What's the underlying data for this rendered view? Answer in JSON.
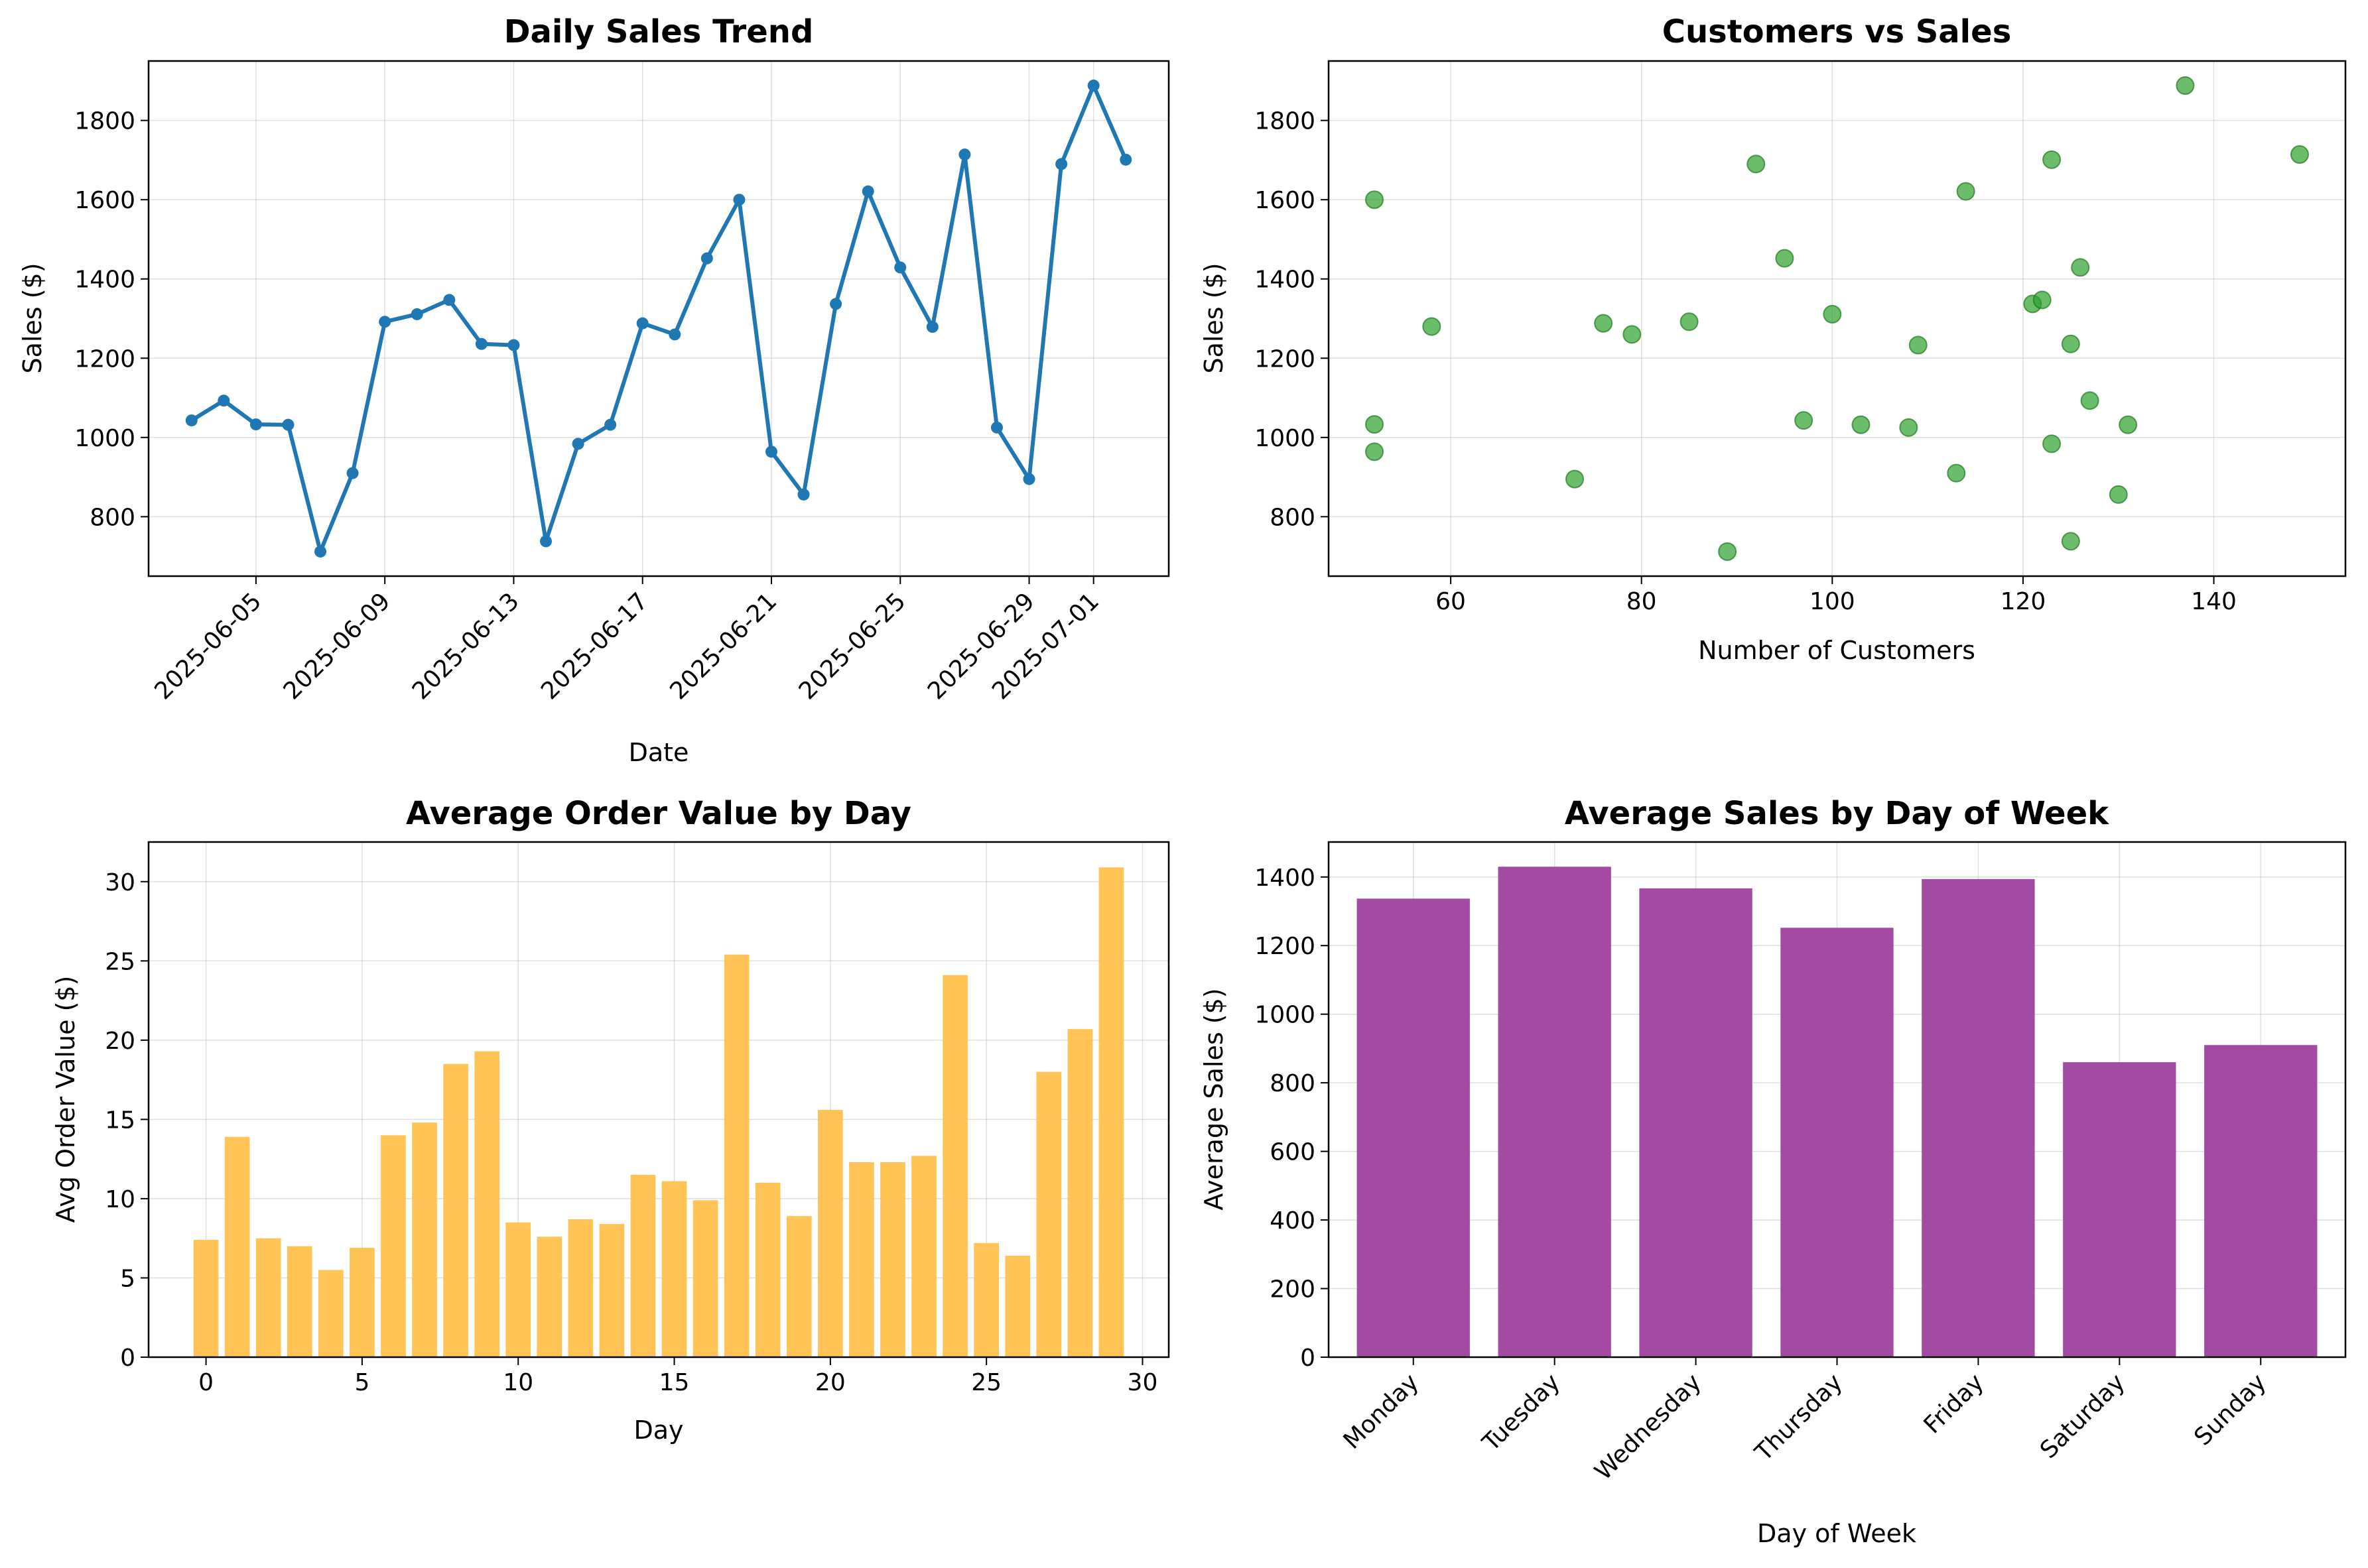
{
  "chart_data": [
    {
      "type": "line",
      "title": "Daily Sales Trend",
      "xlabel": "Date",
      "ylabel": "Sales ($)",
      "x": [
        "2025-06-03",
        "2025-06-04",
        "2025-06-05",
        "2025-06-06",
        "2025-06-07",
        "2025-06-08",
        "2025-06-09",
        "2025-06-10",
        "2025-06-11",
        "2025-06-12",
        "2025-06-13",
        "2025-06-14",
        "2025-06-15",
        "2025-06-16",
        "2025-06-17",
        "2025-06-18",
        "2025-06-19",
        "2025-06-20",
        "2025-06-21",
        "2025-06-22",
        "2025-06-23",
        "2025-06-24",
        "2025-06-25",
        "2025-06-26",
        "2025-06-27",
        "2025-06-28",
        "2025-06-29",
        "2025-06-30",
        "2025-07-01",
        "2025-07-02"
      ],
      "values": [
        1043,
        1093,
        1033,
        1032,
        712,
        910,
        1292,
        1311,
        1347,
        1236,
        1233,
        738,
        984,
        1032,
        1288,
        1260,
        1452,
        1600,
        964,
        856,
        1337,
        1621,
        1429,
        1279,
        1714,
        1025,
        895,
        1690,
        1888,
        1701
      ],
      "xticks": [
        "2025-06-05",
        "2025-06-09",
        "2025-06-13",
        "2025-06-17",
        "2025-06-21",
        "2025-06-25",
        "2025-06-29",
        "2025-07-01"
      ],
      "yticks": [
        800,
        1000,
        1200,
        1400,
        1600,
        1800
      ],
      "ylim": [
        650,
        1950
      ],
      "xlim": [
        "2025-06-01T16:00",
        "2025-07-03T08:00"
      ],
      "grid": true,
      "color": "#1f77b4"
    },
    {
      "type": "scatter",
      "title": "Customers vs Sales",
      "xlabel": "Number of Customers",
      "ylabel": "Sales ($)",
      "points": [
        [
          52,
          1600
        ],
        [
          52,
          1033
        ],
        [
          52,
          964
        ],
        [
          58,
          1280
        ],
        [
          73,
          895
        ],
        [
          76,
          1288
        ],
        [
          79,
          1260
        ],
        [
          85,
          1292
        ],
        [
          89,
          712
        ],
        [
          92,
          1690
        ],
        [
          95,
          1452
        ],
        [
          97,
          1043
        ],
        [
          100,
          1311
        ],
        [
          103,
          1032
        ],
        [
          108,
          1025
        ],
        [
          109,
          1233
        ],
        [
          113,
          910
        ],
        [
          114,
          1621
        ],
        [
          121,
          1337
        ],
        [
          122,
          1347
        ],
        [
          123,
          1701
        ],
        [
          123,
          984
        ],
        [
          125,
          1236
        ],
        [
          125,
          738
        ],
        [
          126,
          1429
        ],
        [
          127,
          1093
        ],
        [
          130,
          856
        ],
        [
          131,
          1032
        ],
        [
          137,
          1888
        ],
        [
          149,
          1714
        ]
      ],
      "xticks": [
        60,
        80,
        100,
        120,
        140
      ],
      "yticks": [
        800,
        1000,
        1200,
        1400,
        1600,
        1800
      ],
      "xlim": [
        47.2,
        153.8
      ],
      "ylim": [
        650,
        1950
      ],
      "grid": true,
      "color": "#2ca02c"
    },
    {
      "type": "bar",
      "title": "Average Order Value by Day",
      "xlabel": "Day",
      "ylabel": "Avg Order Value ($)",
      "x": [
        0,
        1,
        2,
        3,
        4,
        5,
        6,
        7,
        8,
        9,
        10,
        11,
        12,
        13,
        14,
        15,
        16,
        17,
        18,
        19,
        20,
        21,
        22,
        23,
        24,
        25,
        26,
        27,
        28,
        29
      ],
      "values": [
        7.4,
        13.9,
        7.5,
        7.0,
        5.5,
        6.9,
        14.0,
        14.8,
        18.5,
        19.3,
        8.5,
        7.6,
        8.7,
        8.4,
        11.5,
        11.1,
        9.9,
        25.4,
        11.0,
        8.9,
        15.6,
        12.3,
        12.3,
        12.7,
        24.1,
        7.2,
        6.4,
        18.0,
        20.7,
        30.9
      ],
      "xticks": [
        0,
        5,
        10,
        15,
        20,
        25,
        30
      ],
      "yticks": [
        0,
        5,
        10,
        15,
        20,
        25,
        30
      ],
      "xlim": [
        -1.84,
        30.84
      ],
      "ylim": [
        0,
        32.5
      ],
      "grid": true,
      "color": "#ffc04d"
    },
    {
      "type": "bar",
      "title": "Average Sales by Day of Week",
      "xlabel": "Day of Week",
      "ylabel": "Average Sales ($)",
      "categories": [
        "Monday",
        "Tuesday",
        "Wednesday",
        "Thursday",
        "Friday",
        "Saturday",
        "Sunday"
      ],
      "values": [
        1337,
        1430,
        1367,
        1252,
        1394,
        860,
        910
      ],
      "yticks": [
        0,
        200,
        400,
        600,
        800,
        1000,
        1200,
        1400
      ],
      "ylim": [
        0,
        1502
      ],
      "grid": true,
      "color": "#a34aa3"
    }
  ]
}
